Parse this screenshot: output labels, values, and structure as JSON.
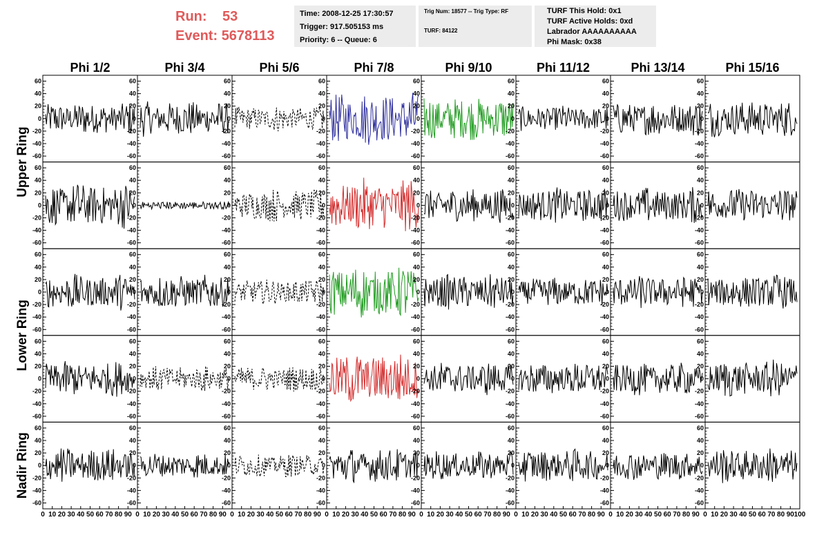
{
  "header": {
    "run_label": "Run:",
    "run_value": "53",
    "event_label": "Event:",
    "event_value": "5678113",
    "time": "Time: 2008-12-25 17:30:57",
    "trigger": "Trigger: 917.505153 ms",
    "priority": "Priority: 6 -- Queue: 6",
    "trig_num": "Trig Num: 18577 -- Trig Type: RF",
    "turf": "TURF: 84122",
    "turf_this_hold": "TURF This Hold: 0x1",
    "turf_active_holds": "TURF Active Holds: 0xd",
    "labrador": "Labrador AAAAAAAAAA",
    "phi_mask": "Phi Mask: 0x38"
  },
  "colors": {
    "black": "#000000",
    "blue": "#2b2b9c",
    "green": "#1f9b1f",
    "red": "#d22828"
  },
  "chart_data": {
    "type": "line",
    "columns": [
      "Phi 1/2",
      "Phi 3/4",
      "Phi 5/6",
      "Phi 7/8",
      "Phi 9/10",
      "Phi 11/12",
      "Phi 13/14",
      "Phi 15/16"
    ],
    "rows": [
      "Upper Ring",
      "Upper Ring",
      "Lower Ring",
      "Lower Ring",
      "Nadir Ring"
    ],
    "row_labels": [
      "Upper Ring",
      "Lower Ring",
      "Nadir Ring"
    ],
    "ylim": [
      -65,
      65
    ],
    "yticks": [
      "60",
      "40",
      "20",
      "0",
      "-20",
      "-40",
      "-60"
    ],
    "xlim": [
      0,
      100
    ],
    "xticks": [
      "0",
      "10",
      "20",
      "30",
      "40",
      "50",
      "60",
      "70",
      "80",
      "90",
      "100"
    ],
    "panels": [
      [
        "black",
        "black",
        "dashed",
        "blue",
        "green",
        "black",
        "black",
        "black"
      ],
      [
        "black",
        "flat",
        "dashed",
        "red",
        "black",
        "black",
        "black",
        "black"
      ],
      [
        "black",
        "black",
        "dashed",
        "green",
        "black",
        "black",
        "black",
        "black"
      ],
      [
        "black",
        "dashed",
        "dashed",
        "red",
        "black",
        "black",
        "black",
        "black"
      ],
      [
        "black",
        "black",
        "dashed",
        "black",
        "black",
        "black",
        "black",
        "black"
      ]
    ],
    "amplitude": [
      [
        28,
        30,
        22,
        45,
        38,
        22,
        30,
        32
      ],
      [
        38,
        6,
        28,
        45,
        30,
        30,
        30,
        30
      ],
      [
        30,
        30,
        22,
        45,
        30,
        25,
        28,
        30
      ],
      [
        30,
        22,
        22,
        45,
        28,
        28,
        28,
        32
      ],
      [
        30,
        22,
        20,
        30,
        25,
        28,
        25,
        30
      ]
    ]
  }
}
